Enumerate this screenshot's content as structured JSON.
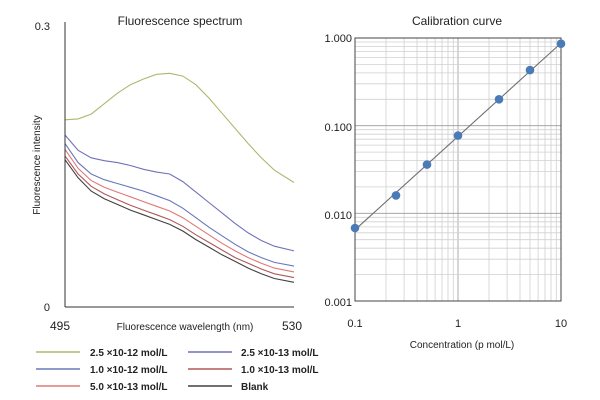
{
  "chart_data": [
    {
      "type": "line",
      "title": "Fluorescence spectrum",
      "xlabel": "Fluorescence wavelength (nm)",
      "ylabel": "Fluorescence intensity",
      "xlim": [
        495,
        530
      ],
      "ylim": [
        0,
        0.3
      ],
      "x_tick_labels": [
        "495",
        "530"
      ],
      "y_tick_labels": [
        "0",
        "0.3"
      ],
      "grid": false,
      "legend_position": "bottom",
      "x": [
        495,
        497,
        499,
        501,
        503,
        505,
        507,
        509,
        511,
        513,
        515,
        517,
        519,
        521,
        523,
        525,
        527,
        530
      ],
      "series": [
        {
          "name": "2.5 ×10-12 mol/L",
          "color": "#a9ba70",
          "values": [
            0.197,
            0.198,
            0.203,
            0.214,
            0.225,
            0.234,
            0.24,
            0.245,
            0.246,
            0.243,
            0.234,
            0.22,
            0.204,
            0.188,
            0.172,
            0.157,
            0.144,
            0.131
          ]
        },
        {
          "name": "2.5 ×10-13 mol/L",
          "color": "#7070bb",
          "values": [
            0.181,
            0.165,
            0.157,
            0.154,
            0.152,
            0.149,
            0.145,
            0.142,
            0.14,
            0.132,
            0.121,
            0.11,
            0.099,
            0.088,
            0.078,
            0.07,
            0.064,
            0.059
          ]
        },
        {
          "name": "1.0 ×10-12 mol/L",
          "color": "#6878b8",
          "values": [
            0.172,
            0.152,
            0.14,
            0.134,
            0.13,
            0.126,
            0.122,
            0.117,
            0.112,
            0.104,
            0.094,
            0.084,
            0.075,
            0.066,
            0.058,
            0.052,
            0.047,
            0.043
          ]
        },
        {
          "name": "1.0 ×10-13 mol/L",
          "color": "#b05858",
          "values": [
            0.159,
            0.14,
            0.127,
            0.119,
            0.113,
            0.107,
            0.102,
            0.097,
            0.092,
            0.085,
            0.076,
            0.068,
            0.06,
            0.052,
            0.046,
            0.04,
            0.035,
            0.031
          ]
        },
        {
          "name": "5.0 ×10-13 mol/L",
          "color": "#e07878",
          "values": [
            0.166,
            0.146,
            0.133,
            0.126,
            0.121,
            0.116,
            0.111,
            0.106,
            0.101,
            0.094,
            0.085,
            0.076,
            0.067,
            0.059,
            0.052,
            0.046,
            0.041,
            0.037
          ]
        },
        {
          "name": "Blank",
          "color": "#404040",
          "values": [
            0.155,
            0.136,
            0.122,
            0.114,
            0.108,
            0.102,
            0.097,
            0.092,
            0.087,
            0.08,
            0.071,
            0.063,
            0.055,
            0.048,
            0.041,
            0.035,
            0.03,
            0.026
          ]
        }
      ]
    },
    {
      "type": "scatter",
      "title": "Calibration curve",
      "xlabel": "Concentration (p mol/L)",
      "ylabel": "",
      "x_scale": "log",
      "y_scale": "log",
      "xlim": [
        0.1,
        10
      ],
      "ylim": [
        0.001,
        1
      ],
      "x_tick_labels": [
        "0.1",
        "1",
        "10"
      ],
      "y_tick_labels": [
        "1.000",
        "0.100",
        "0.010",
        "0.001"
      ],
      "grid": true,
      "marker_color": "#4a7ab8",
      "line_color": "#707070",
      "x": [
        0.1,
        0.25,
        0.5,
        1,
        2.5,
        5,
        10
      ],
      "y": [
        0.0068,
        0.016,
        0.036,
        0.077,
        0.2,
        0.43,
        0.86
      ]
    }
  ]
}
